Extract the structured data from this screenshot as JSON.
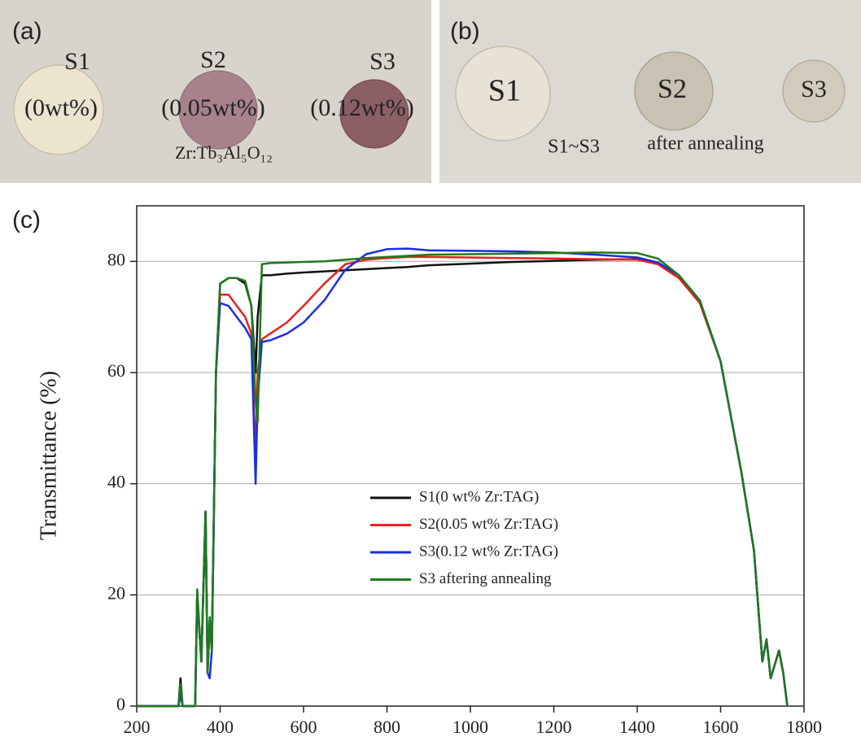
{
  "panel_a": {
    "label": "(a)",
    "samples": [
      "S1",
      "S2",
      "S3"
    ],
    "contents": [
      "(0wt%)",
      "(0.05wt%)",
      "(0.12wt%)"
    ],
    "formula": "Zr:Tb₃Al₅O₁₂"
  },
  "panel_b": {
    "label": "(b)",
    "samples": [
      "S1",
      "S2",
      "S3"
    ],
    "caption": [
      "S1~S3",
      "after annealing"
    ]
  },
  "panel_c": {
    "label": "(c)"
  },
  "chart_data": {
    "type": "line",
    "y_label": "Transmittance (%)",
    "xlim": [
      200,
      1800
    ],
    "xticks": [
      200,
      400,
      600,
      800,
      1000,
      1200,
      1400,
      1600,
      1800
    ],
    "ylim": [
      0,
      90
    ],
    "yticks": [
      0,
      20,
      40,
      60,
      80
    ],
    "grid": true,
    "x": [
      200,
      300,
      305,
      310,
      320,
      340,
      345,
      355,
      365,
      370,
      375,
      380,
      390,
      400,
      420,
      440,
      460,
      475,
      485,
      490,
      500,
      520,
      560,
      600,
      650,
      700,
      750,
      800,
      850,
      900,
      1000,
      1100,
      1200,
      1300,
      1400,
      1450,
      1500,
      1550,
      1600,
      1650,
      1680,
      1700,
      1710,
      1720,
      1740,
      1750,
      1760,
      1800
    ],
    "series": [
      {
        "name": "S1(0 wt% Zr:TAG)",
        "color": "#111111",
        "values": [
          0,
          0,
          5,
          0,
          0,
          0,
          20,
          8,
          35,
          6,
          15,
          10,
          60,
          76,
          77,
          77,
          76,
          72,
          60,
          70,
          77.5,
          77.5,
          77.8,
          78,
          78.2,
          78.4,
          78.6,
          78.8,
          79,
          79.3,
          79.6,
          79.9,
          80.1,
          80.3,
          80.4,
          79.5,
          77,
          73,
          62,
          42,
          28,
          8,
          12,
          5,
          10,
          6,
          0,
          null
        ]
      },
      {
        "name": "S2(0.05 wt% Zr:TAG)",
        "color": "#e8201e",
        "values": [
          0,
          0,
          3,
          0,
          0,
          0,
          20,
          8,
          35,
          6,
          15,
          10,
          60,
          74,
          74,
          72,
          70,
          67,
          45,
          60,
          66,
          67,
          69,
          72,
          76,
          79.5,
          80.3,
          80.6,
          80.8,
          80.8,
          80.7,
          80.6,
          80.5,
          80.4,
          80.3,
          79.5,
          77,
          72.5,
          62,
          42,
          28,
          8,
          12,
          5,
          10,
          6,
          0,
          null
        ]
      },
      {
        "name": "S3(0.12 wt% Zr:TAG)",
        "color": "#1a2ee0",
        "values": [
          0,
          0,
          2,
          0,
          0,
          0,
          20,
          8,
          35,
          6,
          5,
          10,
          60,
          72.5,
          72,
          70,
          68,
          66,
          40,
          55,
          65.5,
          65.8,
          67,
          69,
          73,
          78.5,
          81.3,
          82.2,
          82.3,
          82,
          81.9,
          81.8,
          81.6,
          81.2,
          80.7,
          79.8,
          77.5,
          73,
          62,
          42,
          28,
          8,
          12,
          5,
          10,
          6,
          0,
          null
        ]
      },
      {
        "name": "S3 aftering annealing",
        "color": "#1e7a1e",
        "values": [
          0,
          0,
          4,
          0,
          0,
          0,
          21,
          8,
          35,
          6,
          16,
          10,
          60,
          76,
          77,
          77,
          76.5,
          72,
          55,
          51,
          79.5,
          79.7,
          79.8,
          79.9,
          80,
          80.3,
          80.6,
          80.8,
          81,
          81.2,
          81.3,
          81.4,
          81.5,
          81.6,
          81.5,
          80.5,
          77.5,
          73,
          62,
          42,
          28,
          8,
          12,
          5,
          10,
          6,
          0,
          null
        ]
      }
    ]
  }
}
